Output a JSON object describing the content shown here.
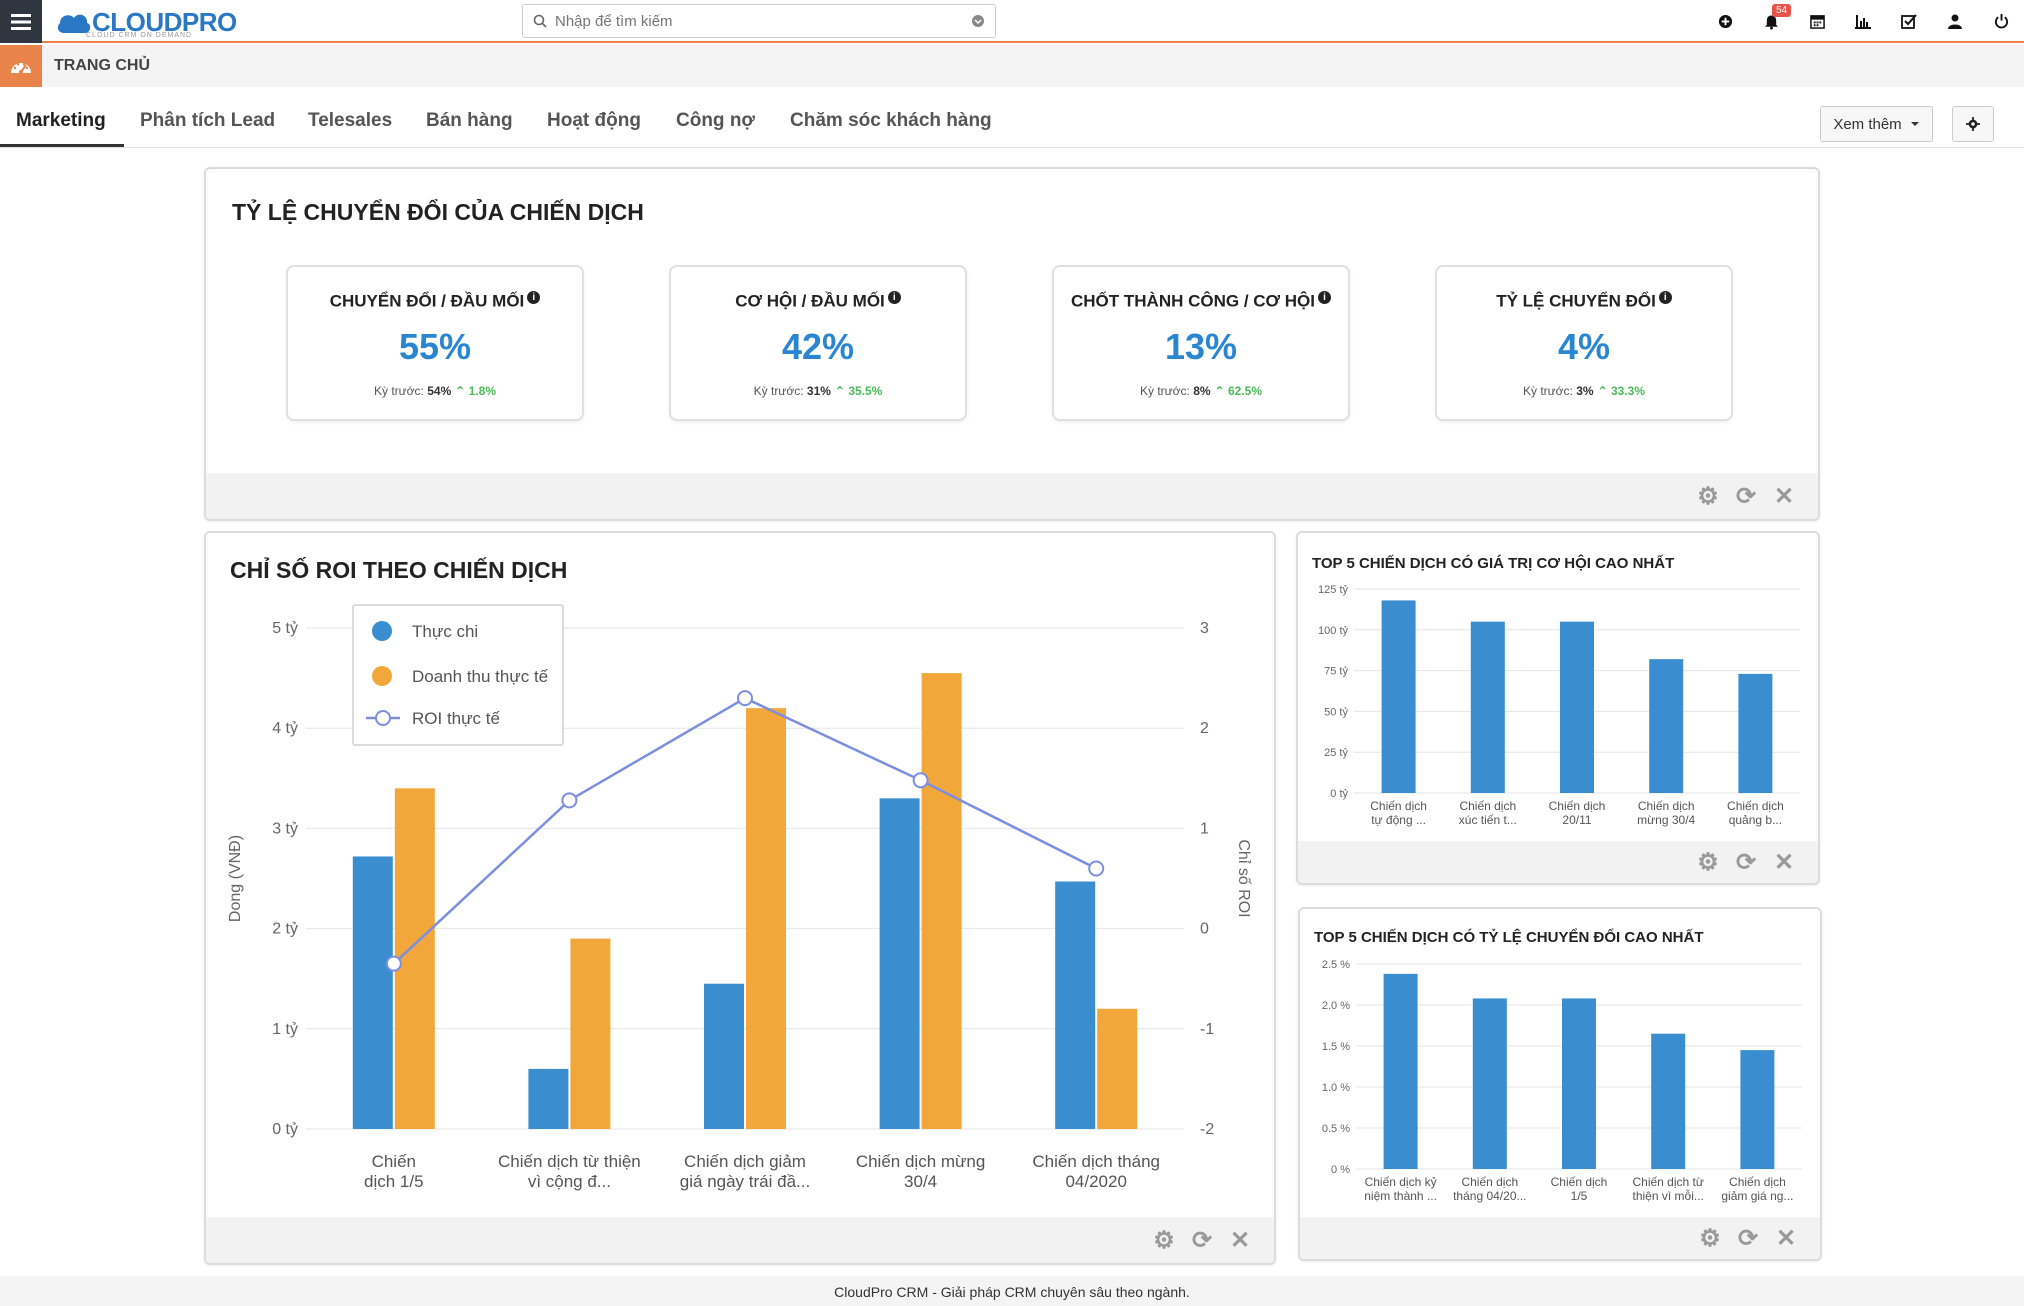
{
  "app": {
    "logo": "CLOUDPRO",
    "logo_sub": "CLOUD CRM ON DEMAND",
    "search_placeholder": "Nhập để tìm kiếm",
    "notification_count": "54"
  },
  "breadcrumb": {
    "title": "TRANG CHỦ"
  },
  "tabs": [
    {
      "label": "Marketing",
      "active": true
    },
    {
      "label": "Phân tích Lead"
    },
    {
      "label": "Telesales"
    },
    {
      "label": "Bán hàng"
    },
    {
      "label": "Hoạt động"
    },
    {
      "label": "Công nợ"
    },
    {
      "label": "Chăm sóc khách hàng"
    }
  ],
  "toolbar": {
    "more_label": "Xem thêm"
  },
  "conversion_panel": {
    "title": "TỶ LỆ CHUYỂN ĐỔI CỦA CHIẾN DỊCH",
    "kpis": [
      {
        "title": "CHUYỂN ĐỔI / ĐẦU MỐI",
        "value": "55%",
        "prev_label": "Kỳ trước:",
        "prev_value": "54%",
        "change": "1.8%"
      },
      {
        "title": "CƠ HỘI / ĐẦU MỐI",
        "value": "42%",
        "prev_label": "Kỳ trước:",
        "prev_value": "31%",
        "change": "35.5%"
      },
      {
        "title": "CHỐT THÀNH CÔNG / CƠ HỘI",
        "value": "13%",
        "prev_label": "Kỳ trước:",
        "prev_value": "8%",
        "change": "62.5%"
      },
      {
        "title": "TỶ LỆ CHUYỂN ĐỔI",
        "value": "4%",
        "prev_label": "Kỳ trước:",
        "prev_value": "3%",
        "change": "33.3%"
      }
    ]
  },
  "roi_panel": {
    "title": "CHỈ SỐ ROI THEO CHIẾN DỊCH"
  },
  "top_value_panel": {
    "title": "TOP 5 CHIẾN DỊCH CÓ GIÁ TRỊ CƠ HỘI CAO NHẤT"
  },
  "top_rate_panel": {
    "title": "TOP 5 CHIẾN DỊCH CÓ TỶ LỆ CHUYỂN ĐỔI CAO NHẤT"
  },
  "footer": {
    "text": "CloudPro CRM - Giải pháp CRM chuyên sâu theo ngành."
  },
  "colors": {
    "accent": "#e8844a",
    "blue": "#3a8ed0",
    "orange": "#f2a73b",
    "line": "#7b8ee0"
  },
  "chart_data": [
    {
      "type": "bar",
      "title": "CHỈ SỐ ROI THEO CHIẾN DỊCH",
      "categories": [
        [
          "Chiến",
          "dịch 1/5"
        ],
        [
          "Chiến dịch từ thiện",
          "vì cộng đ..."
        ],
        [
          "Chiến dịch giảm",
          "giá ngày trái đầ..."
        ],
        [
          "Chiến dịch mừng",
          "30/4"
        ],
        [
          "Chiến dịch tháng",
          "04/2020"
        ]
      ],
      "ylabel": "Dong (VNĐ)",
      "y2label": "Chỉ số ROI",
      "yticks": [
        "0 tỷ",
        "1 tỷ",
        "2 tỷ",
        "3 tỷ",
        "4 tỷ",
        "5 tỷ"
      ],
      "y2ticks": [
        "-2",
        "-1",
        "0",
        "1",
        "2",
        "3"
      ],
      "ylim": [
        0,
        5
      ],
      "y2lim": [
        -2,
        3
      ],
      "series": [
        {
          "name": "Thực chi",
          "values": [
            2.72,
            0.6,
            1.45,
            3.3,
            2.47
          ]
        },
        {
          "name": "Doanh thu thực tế",
          "values": [
            3.4,
            1.9,
            4.2,
            4.55,
            1.2
          ]
        },
        {
          "name": "ROI thực tế",
          "type": "line",
          "values": [
            -0.35,
            1.28,
            2.3,
            1.48,
            0.6
          ]
        }
      ]
    },
    {
      "type": "bar",
      "title": "TOP 5 CHIẾN DỊCH CÓ GIÁ TRỊ CƠ HỘI CAO NHẤT",
      "categories": [
        [
          "Chiến dịch",
          "tự động ..."
        ],
        [
          "Chiến dịch",
          "xúc tiến t..."
        ],
        [
          "Chiến dịch",
          "20/11"
        ],
        [
          "Chiến dịch",
          "mừng 30/4"
        ],
        [
          "Chiến dịch",
          "quảng b..."
        ]
      ],
      "yticks": [
        "0 tỷ",
        "25 tỷ",
        "50 tỷ",
        "75 tỷ",
        "100 tỷ",
        "125 tỷ"
      ],
      "ylim": [
        0,
        125
      ],
      "values": [
        118,
        105,
        105,
        82,
        73
      ]
    },
    {
      "type": "bar",
      "title": "TOP 5 CHIẾN DỊCH CÓ TỶ LỆ CHUYỂN ĐỔI CAO NHẤT",
      "categories": [
        [
          "Chiến dịch kỷ",
          "niệm thành ..."
        ],
        [
          "Chiến dịch",
          "tháng 04/20..."
        ],
        [
          "Chiến dịch",
          "1/5"
        ],
        [
          "Chiến dịch từ",
          "thiện vì mỗi..."
        ],
        [
          "Chiến dịch",
          "giảm giá ng..."
        ]
      ],
      "yticks": [
        "0 %",
        "0.5 %",
        "1.0 %",
        "1.5 %",
        "2.0 %",
        "2.5 %"
      ],
      "ylim": [
        0,
        2.5
      ],
      "values": [
        2.38,
        2.08,
        2.08,
        1.65,
        1.45
      ]
    }
  ]
}
